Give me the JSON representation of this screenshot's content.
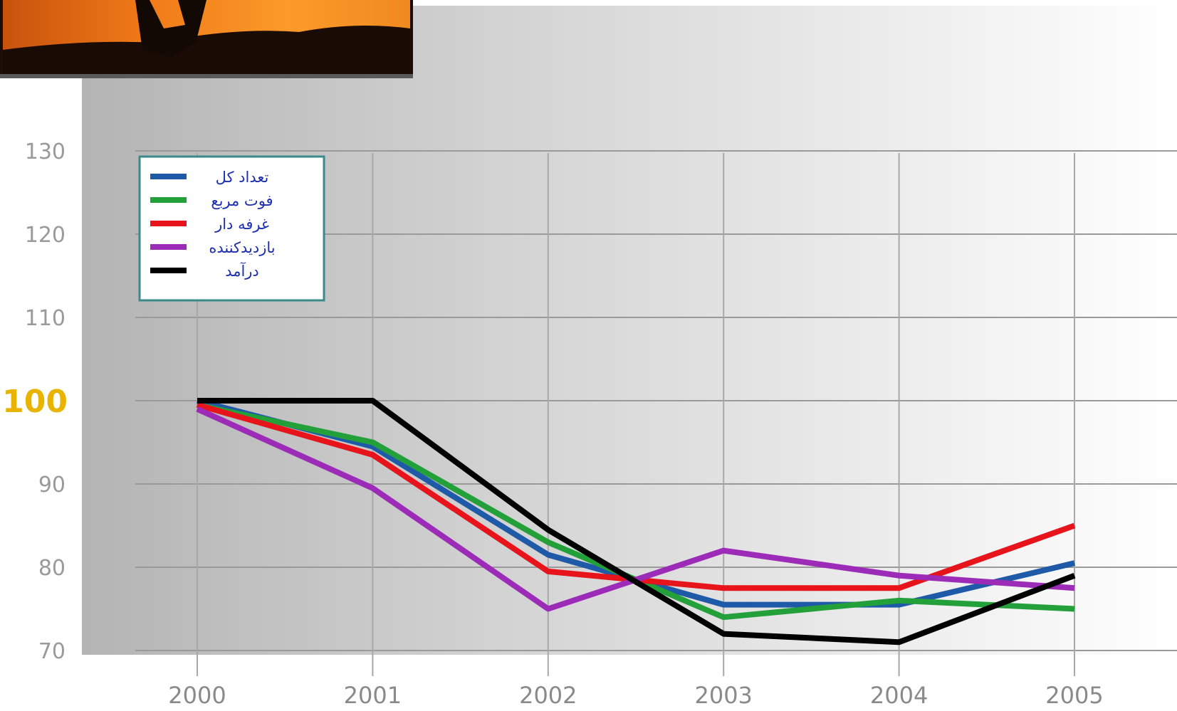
{
  "chart_data": {
    "type": "line",
    "title": "",
    "xlabel": "",
    "ylabel": "",
    "categories": [
      "2000",
      "2001",
      "2002",
      "2003",
      "2004",
      "2005"
    ],
    "ylim": [
      70,
      130
    ],
    "yticks": [
      130,
      120,
      110,
      100,
      90,
      80,
      70
    ],
    "highlight_tick": 100,
    "grid": true,
    "legend_position": "top-left",
    "series": [
      {
        "name": "تعداد کل",
        "color": "#1f5aa8",
        "values": [
          100,
          94.5,
          81.5,
          75.5,
          75.5,
          80.5
        ]
      },
      {
        "name": "فوت مربع",
        "color": "#23a03a",
        "values": [
          99.5,
          95,
          83,
          74,
          76,
          75
        ]
      },
      {
        "name": "غرفه دار",
        "color": "#e8141c",
        "values": [
          99.5,
          93.5,
          79.5,
          77.5,
          77.5,
          85
        ]
      },
      {
        "name": "بازدیدکننده",
        "color": "#9c2bb8",
        "values": [
          99,
          89.5,
          75,
          82,
          79,
          77.5
        ]
      },
      {
        "name": "درآمد",
        "color": "#000000",
        "values": [
          100,
          100,
          84.5,
          72,
          71,
          79
        ]
      }
    ]
  },
  "colors": {
    "highlight_tick": "#e8b400",
    "legend_text": "#1c2fb0",
    "legend_border": "#3a8a8a"
  },
  "decorations": [
    "sunset-photo"
  ]
}
